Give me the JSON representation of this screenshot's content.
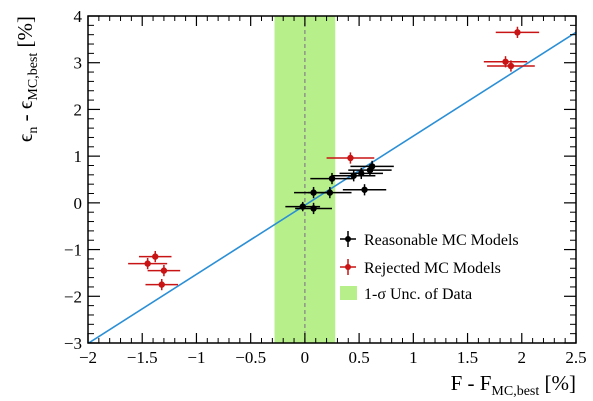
{
  "chart_data": {
    "type": "scatter",
    "xlim": [
      -2.0,
      2.5
    ],
    "ylim": [
      -3,
      4
    ],
    "x_ticks": [
      -2,
      -1.5,
      -1,
      -0.5,
      0,
      0.5,
      1,
      1.5,
      2,
      2.5
    ],
    "x_tick_labels": [
      "−2",
      "−1.5",
      "−1",
      "−0.5",
      "0",
      "0.5",
      "1",
      "1.5",
      "2",
      "2.5"
    ],
    "y_ticks": [
      -3,
      -2,
      -1,
      0,
      1,
      2,
      3,
      4
    ],
    "y_tick_labels": [
      "−3",
      "−2",
      "−1",
      "0",
      "1",
      "2",
      "3",
      "4"
    ],
    "xlabel": {
      "main": "F - F",
      "sub": "MC,best",
      "unit": " [%]"
    },
    "ylabel": {
      "main_a": "ϵ",
      "sub_a": "n",
      "mid": " - ϵ",
      "sub_b": "MC,best",
      "unit": " [%]"
    },
    "band": {
      "x_min": -0.28,
      "x_max": 0.28,
      "label": "1-σ Unc. of Data",
      "color": "#b7f08a"
    },
    "zero_line": {
      "x": 0,
      "color": "#888888",
      "style": "dashed"
    },
    "fit_line": {
      "color": "#2b8fd6",
      "slope": 1.48,
      "intercept": -0.05
    },
    "grid": false,
    "legend": {
      "position": "bottom-right"
    },
    "series": [
      {
        "name": "Reasonable MC Models",
        "color": "#000000",
        "points": [
          {
            "x": 0.08,
            "y": -0.12,
            "xerr": 0.17,
            "yerr": 0.12
          },
          {
            "x": -0.02,
            "y": -0.08,
            "xerr": 0.16,
            "yerr": 0.1
          },
          {
            "x": 0.08,
            "y": 0.22,
            "xerr": 0.18,
            "yerr": 0.12
          },
          {
            "x": 0.23,
            "y": 0.22,
            "xerr": 0.2,
            "yerr": 0.12
          },
          {
            "x": 0.55,
            "y": 0.28,
            "xerr": 0.2,
            "yerr": 0.12
          },
          {
            "x": 0.25,
            "y": 0.52,
            "xerr": 0.2,
            "yerr": 0.12
          },
          {
            "x": 0.45,
            "y": 0.58,
            "xerr": 0.2,
            "yerr": 0.12
          },
          {
            "x": 0.52,
            "y": 0.63,
            "xerr": 0.2,
            "yerr": 0.12
          },
          {
            "x": 0.6,
            "y": 0.7,
            "xerr": 0.2,
            "yerr": 0.12
          },
          {
            "x": 0.62,
            "y": 0.78,
            "xerr": 0.2,
            "yerr": 0.12
          }
        ]
      },
      {
        "name": "Rejected MC Models",
        "color": "#c81414",
        "points": [
          {
            "x": -1.38,
            "y": -1.15,
            "xerr": 0.15,
            "yerr": 0.12
          },
          {
            "x": -1.45,
            "y": -1.3,
            "xerr": 0.18,
            "yerr": 0.12
          },
          {
            "x": -1.3,
            "y": -1.45,
            "xerr": 0.15,
            "yerr": 0.12
          },
          {
            "x": -1.32,
            "y": -1.75,
            "xerr": 0.15,
            "yerr": 0.12
          },
          {
            "x": 0.42,
            "y": 0.96,
            "xerr": 0.22,
            "yerr": 0.12
          },
          {
            "x": 1.85,
            "y": 3.02,
            "xerr": 0.2,
            "yerr": 0.12
          },
          {
            "x": 1.9,
            "y": 2.93,
            "xerr": 0.22,
            "yerr": 0.12
          },
          {
            "x": 1.96,
            "y": 3.65,
            "xerr": 0.2,
            "yerr": 0.12
          }
        ]
      }
    ]
  }
}
